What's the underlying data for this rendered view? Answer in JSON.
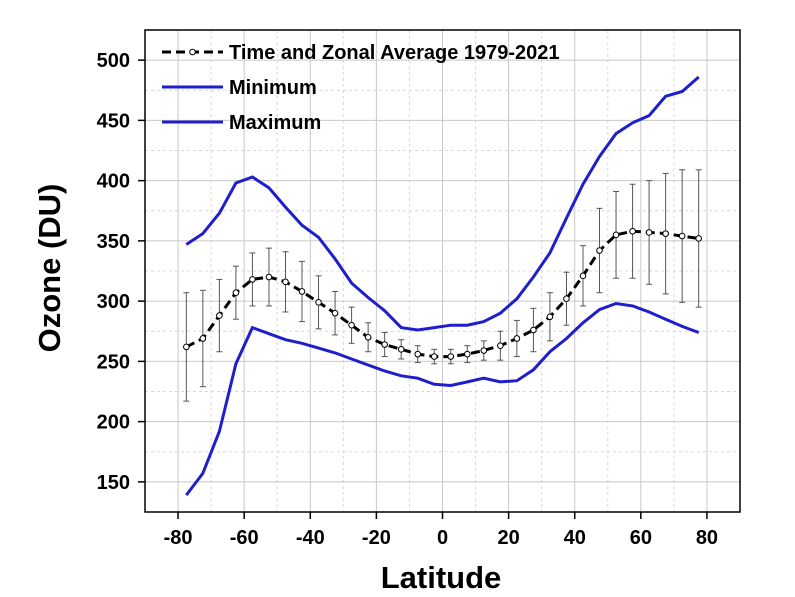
{
  "chart_data": {
    "type": "line",
    "xlabel": "Latitude",
    "ylabel": "Ozone (DU)",
    "xlim": [
      -90,
      90
    ],
    "ylim": [
      125,
      525
    ],
    "xticks": [
      -80,
      -60,
      -40,
      -20,
      0,
      20,
      40,
      60,
      80
    ],
    "yticks": [
      150,
      200,
      250,
      300,
      350,
      400,
      450,
      500
    ],
    "grid": true,
    "legend_position": "top-left",
    "series": [
      {
        "name": "Time and Zonal Average 1979-2021",
        "color": "#000000",
        "style": "dashed-with-markers-and-errorbars",
        "x": [
          -77.5,
          -72.5,
          -67.5,
          -62.5,
          -57.5,
          -52.5,
          -47.5,
          -42.5,
          -37.5,
          -32.5,
          -27.5,
          -22.5,
          -17.5,
          -12.5,
          -7.5,
          -2.5,
          2.5,
          7.5,
          12.5,
          17.5,
          22.5,
          27.5,
          32.5,
          37.5,
          42.5,
          47.5,
          52.5,
          57.5,
          62.5,
          67.5,
          72.5,
          77.5
        ],
        "y": [
          262,
          269,
          288,
          307,
          318,
          320,
          316,
          308,
          299,
          290,
          280,
          270,
          264,
          260,
          256,
          254,
          254,
          256,
          259,
          263,
          269,
          276,
          287,
          302,
          321,
          342,
          355,
          358,
          357,
          356,
          354,
          352
        ],
        "error": [
          45,
          40,
          30,
          22,
          22,
          24,
          25,
          25,
          22,
          18,
          15,
          12,
          10,
          8,
          7,
          6,
          6,
          7,
          8,
          12,
          15,
          18,
          20,
          22,
          25,
          35,
          36,
          39,
          43,
          50,
          55,
          57
        ]
      },
      {
        "name": "Minimum",
        "color": "#1e1ecc",
        "x": [
          -77.5,
          -72.5,
          -67.5,
          -62.5,
          -57.5,
          -52.5,
          -47.5,
          -42.5,
          -37.5,
          -32.5,
          -27.5,
          -22.5,
          -17.5,
          -12.5,
          -7.5,
          -2.5,
          2.5,
          7.5,
          12.5,
          17.5,
          22.5,
          27.5,
          32.5,
          37.5,
          42.5,
          47.5,
          52.5,
          57.5,
          62.5,
          67.5,
          72.5,
          77.5
        ],
        "y": [
          139,
          157,
          192,
          248,
          278,
          273,
          268,
          265,
          261,
          257,
          252,
          247,
          242,
          238,
          236,
          231,
          230,
          233,
          236,
          233,
          234,
          243,
          258,
          269,
          282,
          293,
          298,
          296,
          291,
          285,
          279,
          274
        ]
      },
      {
        "name": "Maximum",
        "color": "#1e1ecc",
        "x": [
          -77.5,
          -72.5,
          -67.5,
          -62.5,
          -57.5,
          -52.5,
          -47.5,
          -42.5,
          -37.5,
          -32.5,
          -27.5,
          -22.5,
          -17.5,
          -12.5,
          -7.5,
          -2.5,
          2.5,
          7.5,
          12.5,
          17.5,
          22.5,
          27.5,
          32.5,
          37.5,
          42.5,
          47.5,
          52.5,
          57.5,
          62.5,
          67.5,
          72.5,
          77.5
        ],
        "y": [
          347,
          356,
          373,
          398,
          403,
          394,
          378,
          363,
          353,
          335,
          315,
          303,
          292,
          278,
          276,
          278,
          280,
          280,
          283,
          290,
          302,
          320,
          340,
          369,
          397,
          420,
          439,
          448,
          454,
          470,
          474,
          486
        ]
      }
    ]
  }
}
